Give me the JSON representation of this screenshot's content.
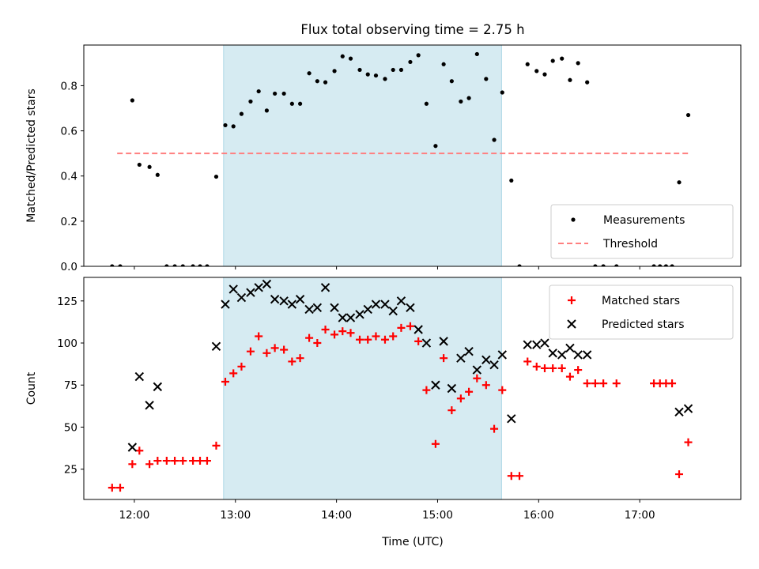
{
  "chart_data": {
    "title": "Flux total observing time = 2.75 h",
    "xlabel": "Time (UTC)",
    "xlim_hours": [
      11.5,
      18.0
    ],
    "xticks": [
      {
        "value": 12,
        "label": "12:00"
      },
      {
        "value": 13,
        "label": "13:00"
      },
      {
        "value": 14,
        "label": "14:00"
      },
      {
        "value": 15,
        "label": "15:00"
      },
      {
        "value": 16,
        "label": "16:00"
      },
      {
        "value": 17,
        "label": "17:00"
      }
    ],
    "shaded_interval_hours": [
      12.883,
      15.633
    ],
    "shade_color": "#add8e6",
    "panels": [
      {
        "type": "scatter",
        "ylabel": "Matched/Predicted stars",
        "ylim": [
          0,
          0.98
        ],
        "yticks": [
          0.0,
          0.2,
          0.4,
          0.6,
          0.8
        ],
        "ytick_labels": [
          "0.0",
          "0.2",
          "0.4",
          "0.6",
          "0.8"
        ],
        "legend_position": "lower-right",
        "threshold": {
          "name": "Threshold",
          "value": 0.5,
          "x_range": [
            11.83,
            17.48
          ],
          "color": "#ff7f7f"
        },
        "series": [
          {
            "name": "Measurements",
            "marker": "dot",
            "color": "#000000",
            "points": [
              [
                11.78,
                0.0
              ],
              [
                11.86,
                0.0
              ],
              [
                11.98,
                0.735
              ],
              [
                12.05,
                0.45
              ],
              [
                12.15,
                0.44
              ],
              [
                12.23,
                0.405
              ],
              [
                12.32,
                0.0
              ],
              [
                12.4,
                0.0
              ],
              [
                12.48,
                0.0
              ],
              [
                12.58,
                0.0
              ],
              [
                12.65,
                0.0
              ],
              [
                12.72,
                0.0
              ],
              [
                12.81,
                0.397
              ],
              [
                12.9,
                0.625
              ],
              [
                12.98,
                0.62
              ],
              [
                13.06,
                0.675
              ],
              [
                13.15,
                0.73
              ],
              [
                13.23,
                0.775
              ],
              [
                13.31,
                0.69
              ],
              [
                13.39,
                0.765
              ],
              [
                13.48,
                0.765
              ],
              [
                13.56,
                0.72
              ],
              [
                13.64,
                0.72
              ],
              [
                13.73,
                0.855
              ],
              [
                13.81,
                0.82
              ],
              [
                13.89,
                0.815
              ],
              [
                13.98,
                0.865
              ],
              [
                14.06,
                0.93
              ],
              [
                14.14,
                0.92
              ],
              [
                14.23,
                0.87
              ],
              [
                14.31,
                0.85
              ],
              [
                14.39,
                0.845
              ],
              [
                14.48,
                0.83
              ],
              [
                14.56,
                0.87
              ],
              [
                14.64,
                0.87
              ],
              [
                14.73,
                0.905
              ],
              [
                14.81,
                0.935
              ],
              [
                14.89,
                0.72
              ],
              [
                14.98,
                0.533
              ],
              [
                15.06,
                0.895
              ],
              [
                15.14,
                0.82
              ],
              [
                15.23,
                0.73
              ],
              [
                15.31,
                0.745
              ],
              [
                15.39,
                0.94
              ],
              [
                15.48,
                0.83
              ],
              [
                15.56,
                0.56
              ],
              [
                15.64,
                0.77
              ],
              [
                15.73,
                0.38
              ],
              [
                15.81,
                0.0
              ],
              [
                15.89,
                0.895
              ],
              [
                15.98,
                0.865
              ],
              [
                16.06,
                0.85
              ],
              [
                16.14,
                0.91
              ],
              [
                16.23,
                0.92
              ],
              [
                16.31,
                0.825
              ],
              [
                16.39,
                0.9
              ],
              [
                16.48,
                0.815
              ],
              [
                16.56,
                0.0
              ],
              [
                16.64,
                0.0
              ],
              [
                16.77,
                0.0
              ],
              [
                17.14,
                0.0
              ],
              [
                17.2,
                0.0
              ],
              [
                17.26,
                0.0
              ],
              [
                17.32,
                0.0
              ],
              [
                17.39,
                0.372
              ],
              [
                17.48,
                0.67
              ]
            ]
          }
        ]
      },
      {
        "type": "scatter",
        "ylabel": "Count",
        "ylim": [
          7,
          139
        ],
        "yticks": [
          25,
          50,
          75,
          100,
          125
        ],
        "ytick_labels": [
          "25",
          "50",
          "75",
          "100",
          "125"
        ],
        "legend_position": "upper-right",
        "series": [
          {
            "name": "Matched stars",
            "marker": "plus",
            "color": "#ff0000",
            "points": [
              [
                11.78,
                14
              ],
              [
                11.86,
                14
              ],
              [
                11.98,
                28
              ],
              [
                12.05,
                36
              ],
              [
                12.15,
                28
              ],
              [
                12.23,
                30
              ],
              [
                12.32,
                30
              ],
              [
                12.4,
                30
              ],
              [
                12.48,
                30
              ],
              [
                12.58,
                30
              ],
              [
                12.65,
                30
              ],
              [
                12.72,
                30
              ],
              [
                12.81,
                39
              ],
              [
                12.9,
                77
              ],
              [
                12.98,
                82
              ],
              [
                13.06,
                86
              ],
              [
                13.15,
                95
              ],
              [
                13.23,
                104
              ],
              [
                13.31,
                94
              ],
              [
                13.39,
                97
              ],
              [
                13.48,
                96
              ],
              [
                13.56,
                89
              ],
              [
                13.64,
                91
              ],
              [
                13.73,
                103
              ],
              [
                13.81,
                100
              ],
              [
                13.89,
                108
              ],
              [
                13.98,
                105
              ],
              [
                14.06,
                107
              ],
              [
                14.14,
                106
              ],
              [
                14.23,
                102
              ],
              [
                14.31,
                102
              ],
              [
                14.39,
                104
              ],
              [
                14.48,
                102
              ],
              [
                14.56,
                104
              ],
              [
                14.64,
                109
              ],
              [
                14.73,
                110
              ],
              [
                14.81,
                101
              ],
              [
                14.89,
                72
              ],
              [
                14.98,
                40
              ],
              [
                15.06,
                91
              ],
              [
                15.14,
                60
              ],
              [
                15.23,
                67
              ],
              [
                15.31,
                71
              ],
              [
                15.39,
                79
              ],
              [
                15.48,
                75
              ],
              [
                15.56,
                49
              ],
              [
                15.64,
                72
              ],
              [
                15.73,
                21
              ],
              [
                15.81,
                21
              ],
              [
                15.89,
                89
              ],
              [
                15.98,
                86
              ],
              [
                16.06,
                85
              ],
              [
                16.14,
                85
              ],
              [
                16.23,
                85
              ],
              [
                16.31,
                80
              ],
              [
                16.39,
                84
              ],
              [
                16.48,
                76
              ],
              [
                16.56,
                76
              ],
              [
                16.64,
                76
              ],
              [
                16.77,
                76
              ],
              [
                17.14,
                76
              ],
              [
                17.2,
                76
              ],
              [
                17.26,
                76
              ],
              [
                17.32,
                76
              ],
              [
                17.39,
                22
              ],
              [
                17.48,
                41
              ]
            ]
          },
          {
            "name": "Predicted stars",
            "marker": "x",
            "color": "#000000",
            "points": [
              [
                11.98,
                38
              ],
              [
                12.05,
                80
              ],
              [
                12.15,
                63
              ],
              [
                12.23,
                74
              ],
              [
                12.81,
                98
              ],
              [
                12.9,
                123
              ],
              [
                12.98,
                132
              ],
              [
                13.06,
                127
              ],
              [
                13.15,
                130
              ],
              [
                13.23,
                133
              ],
              [
                13.31,
                135
              ],
              [
                13.39,
                126
              ],
              [
                13.48,
                125
              ],
              [
                13.56,
                123
              ],
              [
                13.64,
                126
              ],
              [
                13.73,
                120
              ],
              [
                13.81,
                121
              ],
              [
                13.89,
                133
              ],
              [
                13.98,
                121
              ],
              [
                14.06,
                115
              ],
              [
                14.14,
                115
              ],
              [
                14.23,
                117
              ],
              [
                14.31,
                120
              ],
              [
                14.39,
                123
              ],
              [
                14.48,
                123
              ],
              [
                14.56,
                119
              ],
              [
                14.64,
                125
              ],
              [
                14.73,
                121
              ],
              [
                14.81,
                108
              ],
              [
                14.89,
                100
              ],
              [
                14.98,
                75
              ],
              [
                15.06,
                101
              ],
              [
                15.14,
                73
              ],
              [
                15.23,
                91
              ],
              [
                15.31,
                95
              ],
              [
                15.39,
                84
              ],
              [
                15.48,
                90
              ],
              [
                15.56,
                87
              ],
              [
                15.64,
                93
              ],
              [
                15.73,
                55
              ],
              [
                15.89,
                99
              ],
              [
                15.98,
                99
              ],
              [
                16.06,
                100
              ],
              [
                16.14,
                94
              ],
              [
                16.23,
                93
              ],
              [
                16.31,
                97
              ],
              [
                16.39,
                93
              ],
              [
                16.48,
                93
              ],
              [
                17.39,
                59
              ],
              [
                17.48,
                61
              ]
            ]
          }
        ]
      }
    ]
  }
}
